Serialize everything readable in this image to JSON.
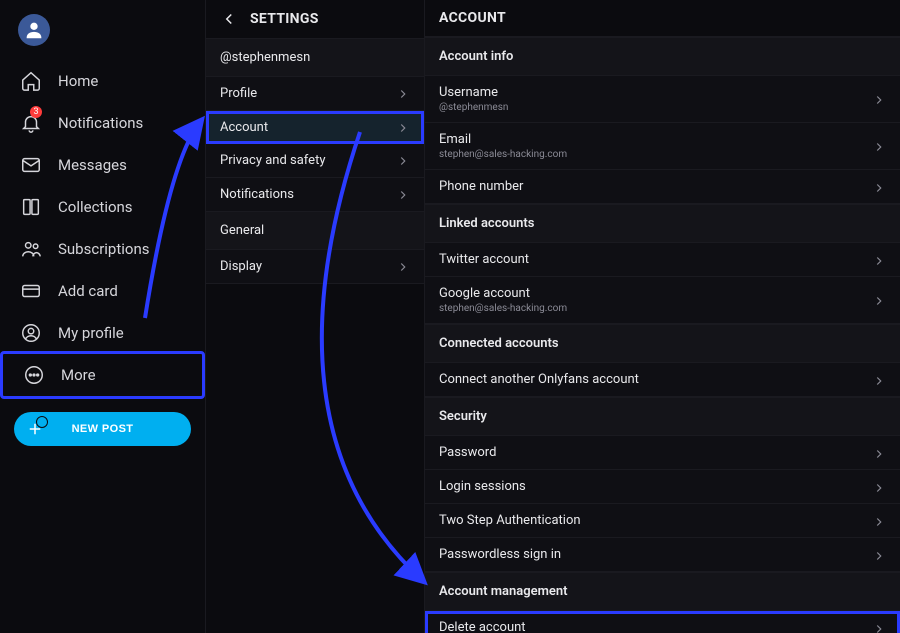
{
  "colors": {
    "bg": "#0b0b0f",
    "panel": "#0f0f14",
    "sectionHeader": "#141419",
    "border": "#1a1a20",
    "text": "#e9e9ec",
    "muted": "#8b8b96",
    "accent": "#00aff0",
    "highlight": "#2a3bff",
    "badge": "#ff3b3b"
  },
  "nav": {
    "items": [
      {
        "label": "Home",
        "icon": "home"
      },
      {
        "label": "Notifications",
        "icon": "bell",
        "badge": "3"
      },
      {
        "label": "Messages",
        "icon": "message"
      },
      {
        "label": "Collections",
        "icon": "bookmark"
      },
      {
        "label": "Subscriptions",
        "icon": "users"
      },
      {
        "label": "Add card",
        "icon": "card"
      },
      {
        "label": "My profile",
        "icon": "profile"
      },
      {
        "label": "More",
        "icon": "dots",
        "highlight": true
      }
    ],
    "newPost": "NEW POST"
  },
  "settings": {
    "title": "SETTINGS",
    "handle": "@stephenmesn",
    "items": [
      {
        "label": "Profile"
      },
      {
        "label": "Account",
        "active": true
      },
      {
        "label": "Privacy and safety"
      },
      {
        "label": "Notifications"
      }
    ],
    "generalLabel": "General",
    "generalItems": [
      {
        "label": "Display"
      }
    ]
  },
  "account": {
    "title": "ACCOUNT",
    "sections": [
      {
        "header": "Account info",
        "rows": [
          {
            "primary": "Username",
            "secondary": "@stephenmesn"
          },
          {
            "primary": "Email",
            "secondary": "stephen@sales-hacking.com"
          },
          {
            "primary": "Phone number"
          }
        ]
      },
      {
        "header": "Linked accounts",
        "rows": [
          {
            "primary": "Twitter account"
          },
          {
            "primary": "Google account",
            "secondary": "stephen@sales-hacking.com"
          }
        ]
      },
      {
        "header": "Connected accounts",
        "rows": [
          {
            "primary": "Connect another Onlyfans account"
          }
        ]
      },
      {
        "header": "Security",
        "rows": [
          {
            "primary": "Password"
          },
          {
            "primary": "Login sessions"
          },
          {
            "primary": "Two Step Authentication"
          },
          {
            "primary": "Passwordless sign in"
          }
        ]
      },
      {
        "header": "Account management",
        "rows": [
          {
            "primary": "Delete account",
            "highlight": true
          }
        ]
      }
    ]
  }
}
